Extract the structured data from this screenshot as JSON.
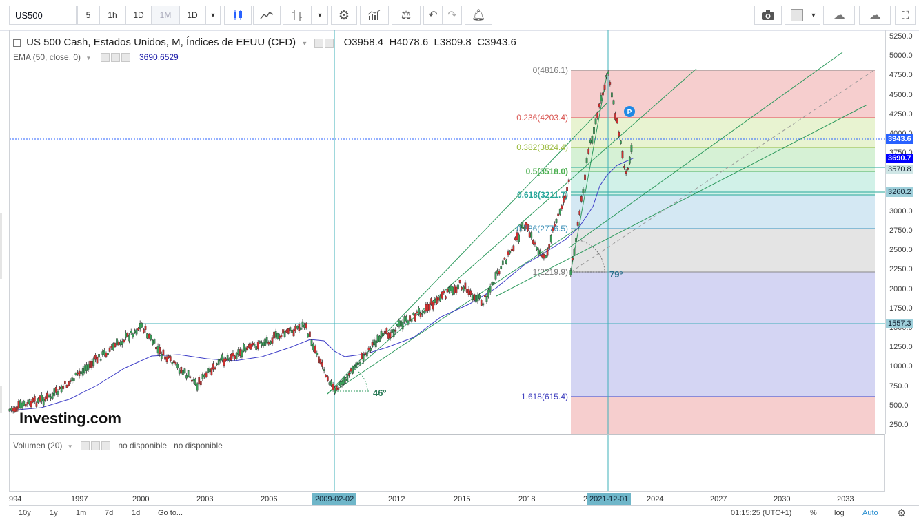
{
  "toolbar": {
    "symbol": "US500",
    "intervals": [
      "5",
      "1h",
      "1D",
      "1M",
      "1D"
    ],
    "active_interval": "1M"
  },
  "legend": {
    "title": "US 500 Cash, Estados Unidos, M, Índices de EEUU (CFD)",
    "open": "O3958.4",
    "high": "H4078.6",
    "low": "L3809.8",
    "close": "C3943.6",
    "ema_label": "EMA (50, close, 0)",
    "ema_value": "3690.6529"
  },
  "fib": {
    "levels": [
      {
        "label": "0(4816.1)",
        "color": "#777777"
      },
      {
        "label": "0.236(4203.4)",
        "color": "#d9534f"
      },
      {
        "label": "0.382(3824.4)",
        "color": "#9aba3c"
      },
      {
        "label": "0.5(3518.0)",
        "color": "#4caf50"
      },
      {
        "label": "0.618(3211.7)",
        "color": "#26a69a"
      },
      {
        "label": "0.786(2776.5)",
        "color": "#3a8fb7"
      },
      {
        "label": "1(2219.9)",
        "color": "#777777"
      },
      {
        "label": "1.618(615.4)",
        "color": "#3f3fbf"
      }
    ]
  },
  "annotations": {
    "angle_left": "46º",
    "angle_right": "79º",
    "marker": "P",
    "watermark": "Investing.com"
  },
  "volume": {
    "label": "Volumen (20)",
    "value1": "no disponible",
    "value2": "no disponible"
  },
  "xaxis": {
    "labels": [
      "994",
      "1997",
      "2000",
      "2003",
      "2006",
      "2012",
      "2015",
      "2018",
      "2024",
      "2027",
      "2030",
      "2033"
    ],
    "highlight_left": "2009-02-02",
    "highlight_right": "2021-12-01",
    "partial_left": "2"
  },
  "yaxis": {
    "labels": [
      "5250.0",
      "5000.0",
      "4750.0",
      "4500.0",
      "4250.0",
      "4000.0",
      "3750.0",
      "3500.0",
      "3250.0",
      "3000.0",
      "2750.0",
      "2500.0",
      "2250.0",
      "2000.0",
      "1750.0",
      "1500.0",
      "1250.0",
      "1000.0",
      "750.0",
      "500.0",
      "250.0"
    ],
    "tags": [
      {
        "label": "3943.6",
        "bg": "#2962ff"
      },
      {
        "label": "3690.7",
        "bg": "#0000ff"
      },
      {
        "label": "3570.8",
        "bg": "#cfe6e6"
      },
      {
        "label": "3260.2",
        "bg": "#9fd0db"
      },
      {
        "label": "1557.3",
        "bg": "#9fd0db"
      }
    ]
  },
  "bottombar": {
    "ranges": [
      "10y",
      "1y",
      "1m",
      "7d",
      "1d"
    ],
    "goto": "Go to...",
    "time": "01:15:25 (UTC+1)",
    "percent": "%",
    "log": "log",
    "auto": "Auto"
  },
  "chart_data": {
    "type": "candlestick",
    "title": "US 500 Cash, Estados Unidos, M, Índices de EEUU (CFD)",
    "interval": "monthly",
    "ylim": [
      0,
      5300
    ],
    "x_range": [
      "1994",
      "2034"
    ],
    "series": [
      {
        "name": "US500",
        "approx_path": [
          {
            "x": "1994",
            "y": 460
          },
          {
            "x": "1996",
            "y": 640
          },
          {
            "x": "1998",
            "y": 1100
          },
          {
            "x": "2000-03",
            "y": 1550
          },
          {
            "x": "2001",
            "y": 1200
          },
          {
            "x": "2002-10",
            "y": 800
          },
          {
            "x": "2004",
            "y": 1120
          },
          {
            "x": "2007-10",
            "y": 1557
          },
          {
            "x": "2009-03",
            "y": 690
          },
          {
            "x": "2011",
            "y": 1330
          },
          {
            "x": "2013",
            "y": 1700
          },
          {
            "x": "2015",
            "y": 2080
          },
          {
            "x": "2016-02",
            "y": 1850
          },
          {
            "x": "2018-01",
            "y": 2850
          },
          {
            "x": "2018-12",
            "y": 2400
          },
          {
            "x": "2020-02",
            "y": 3380
          },
          {
            "x": "2020-03",
            "y": 2220
          },
          {
            "x": "2021-01",
            "y": 3800
          },
          {
            "x": "2021-12",
            "y": 4816
          },
          {
            "x": "2022-10",
            "y": 3500
          },
          {
            "x": "2023-02",
            "y": 3943.6
          }
        ]
      },
      {
        "name": "EMA (50, close, 0)",
        "last": 3690.6529
      }
    ],
    "fibonacci_retracement": [
      {
        "ratio": 0,
        "value": 4816.1
      },
      {
        "ratio": 0.236,
        "value": 4203.4
      },
      {
        "ratio": 0.382,
        "value": 3824.4
      },
      {
        "ratio": 0.5,
        "value": 3518.0
      },
      {
        "ratio": 0.618,
        "value": 3211.7
      },
      {
        "ratio": 0.786,
        "value": 2776.5
      },
      {
        "ratio": 1,
        "value": 2219.9
      },
      {
        "ratio": 1.618,
        "value": 615.4
      }
    ],
    "horizontal_lines": [
      3943.6,
      3570.8,
      3260.2,
      1557.3
    ]
  }
}
